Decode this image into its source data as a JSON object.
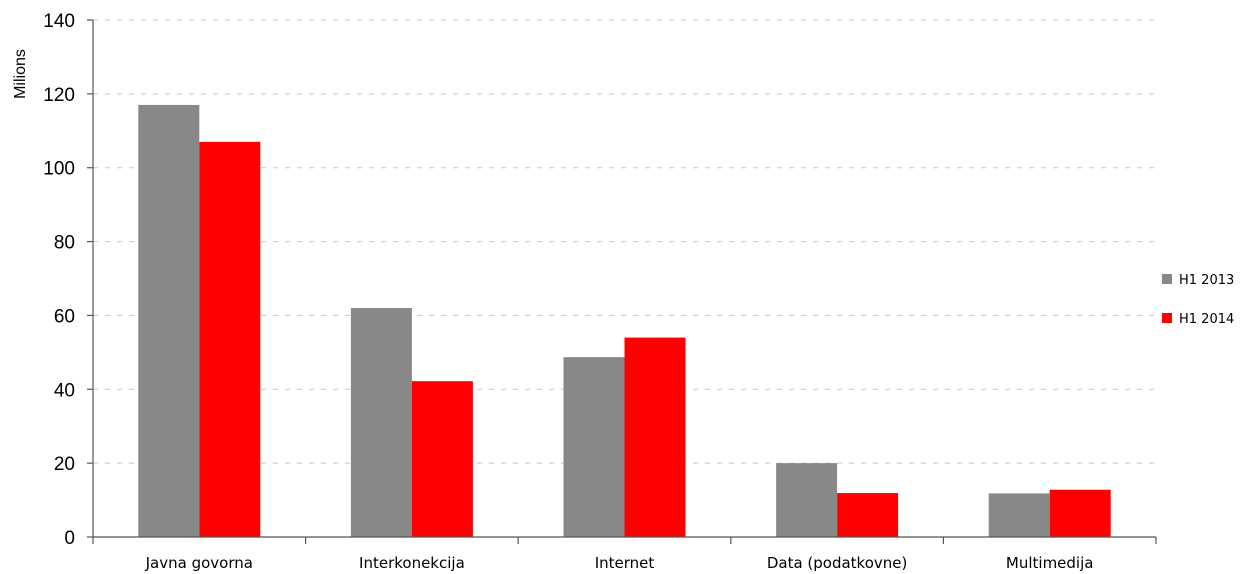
{
  "chart_data": {
    "type": "bar",
    "title": "",
    "ylabel": "Milions",
    "xlabel": "",
    "ylim": [
      0,
      140
    ],
    "yticks": [
      "0",
      "20",
      "40",
      "60",
      "80",
      "100",
      "120",
      "140"
    ],
    "grid": true,
    "legend_position": "right",
    "categories": [
      "Javna govorna",
      "Interkonekcija",
      "Internet",
      "Data (podatkovne)",
      "Multimedija"
    ],
    "series": [
      {
        "name": "H1 2013",
        "color": "#888888",
        "values": [
          117,
          62,
          48.7,
          20,
          11.8
        ]
      },
      {
        "name": "H1 2014",
        "color": "#ff0000",
        "values": [
          107,
          42.2,
          54,
          11.9,
          12.8
        ]
      }
    ]
  }
}
